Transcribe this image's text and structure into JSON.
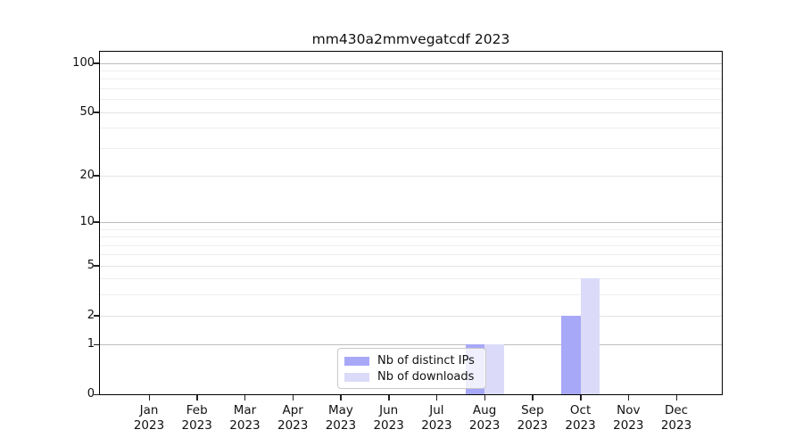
{
  "chart_data": {
    "type": "bar",
    "title": "mm430a2mmvegatcdf 2023",
    "categories": [
      {
        "month": "Jan",
        "year": "2023"
      },
      {
        "month": "Feb",
        "year": "2023"
      },
      {
        "month": "Mar",
        "year": "2023"
      },
      {
        "month": "Apr",
        "year": "2023"
      },
      {
        "month": "May",
        "year": "2023"
      },
      {
        "month": "Jun",
        "year": "2023"
      },
      {
        "month": "Jul",
        "year": "2023"
      },
      {
        "month": "Aug",
        "year": "2023"
      },
      {
        "month": "Sep",
        "year": "2023"
      },
      {
        "month": "Oct",
        "year": "2023"
      },
      {
        "month": "Nov",
        "year": "2023"
      },
      {
        "month": "Dec",
        "year": "2023"
      }
    ],
    "series": [
      {
        "name": "Nb of distinct IPs",
        "color": "#a8a8f8",
        "values": [
          0,
          0,
          0,
          0,
          0,
          0,
          0,
          1,
          0,
          2,
          0,
          0
        ]
      },
      {
        "name": "Nb of downloads",
        "color": "#dbdbf9",
        "values": [
          0,
          0,
          0,
          0,
          0,
          0,
          0,
          1,
          0,
          4,
          0,
          0
        ]
      }
    ],
    "xlabel": "",
    "ylabel": "",
    "yscale": "log1p",
    "ylim": [
      0,
      117
    ],
    "y_major_ticks": [
      100,
      50,
      20,
      10,
      5,
      2,
      1,
      0
    ],
    "y_decade_lines": [
      1,
      10,
      100
    ],
    "y_minor_gridlines": [
      3,
      4,
      6,
      7,
      8,
      9,
      30,
      40,
      60,
      70,
      80,
      90
    ],
    "grid": "on",
    "legend_position": "lower center inside"
  },
  "colors": {
    "background": "#ffffff",
    "spine": "#000000",
    "grid_decade": "#bdbdbd",
    "grid_labeled": "#e3e3e3",
    "grid_minor": "#eeeeee",
    "text": "#1a1a1a",
    "legend_border": "#c9c9c9"
  }
}
